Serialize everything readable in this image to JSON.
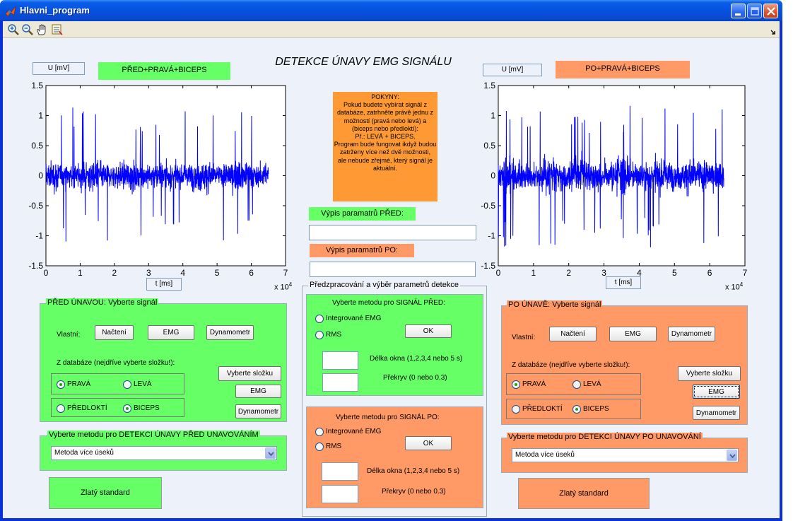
{
  "window": {
    "title": "Hlavni_program"
  },
  "toolbar": {
    "icons": [
      "zoom-in-icon",
      "zoom-out-icon",
      "pan-hand-icon",
      "data-cursor-icon"
    ]
  },
  "main_title": "DETEKCE ÚNAVY EMG SIGNÁLU",
  "left_plot": {
    "ylabel": "U [mV]",
    "xlabel": "t [ms]",
    "signal_label": "PŘED+PRAVÁ+BICEPS",
    "exponent": "x 10",
    "exponent_power": "4"
  },
  "right_plot": {
    "ylabel": "U [mV]",
    "xlabel": "t [ms]",
    "signal_label": "PO+PRAVÁ+BICEPS",
    "exponent": "x 10",
    "exponent_power": "4"
  },
  "chart_data": [
    {
      "type": "line",
      "series": [
        {
          "color": "#0000ff",
          "x_range": [
            0,
            65000
          ],
          "amplitude_typical": 0.35,
          "peak": 1.15
        }
      ],
      "xlabel": "t [ms]",
      "ylabel": "U [mV]",
      "xlim": [
        0,
        70000
      ],
      "ylim": [
        -1.5,
        1.5
      ],
      "xticks": [
        "0",
        "1",
        "2",
        "3",
        "4",
        "5",
        "6",
        "7"
      ],
      "yticks": [
        "1.5",
        "1",
        "0.5",
        "0",
        "-0.5",
        "-1",
        "-1.5"
      ],
      "x_multiplier": "x 10^4",
      "grid": false
    },
    {
      "type": "line",
      "series": [
        {
          "color": "#0000ff",
          "x_range": [
            0,
            64000
          ],
          "amplitude_typical": 0.4,
          "peak": 1.2
        }
      ],
      "xlabel": "t [ms]",
      "ylabel": "U [mV]",
      "xlim": [
        0,
        70000
      ],
      "ylim": [
        -1.5,
        1.5
      ],
      "xticks": [
        "0",
        "1",
        "2",
        "3",
        "4",
        "5",
        "6",
        "7"
      ],
      "yticks": [
        "1.5",
        "1",
        "0.5",
        "0",
        "-0.5",
        "-1",
        "-1.5"
      ],
      "x_multiplier": "x 10^4",
      "grid": false
    }
  ],
  "instructions": {
    "heading": "POKYNY:",
    "lines": [
      "Pokud budete vybírat signál z",
      "databáze, zatrhněte právě jednu z",
      "možností (pravá nebo levá) a",
      "(biceps nebo předloktí):",
      "Př.: LEVÁ + BICEPS.",
      "Program bude fungovat ikdyž budou",
      "zatrženy více než dvě možnosti,",
      "ale nebude zřejmé, který signál je",
      "aktuální."
    ]
  },
  "params": {
    "before_label": "Výpis paramatrů PŘED:",
    "before_value": "",
    "after_label": "Výpis paramatrů PO:",
    "after_value": ""
  },
  "before_panel": {
    "title": "PŘED ÚNAVOU: Vyberte signál",
    "own_label": "Vlastní:",
    "load_btn": "Načtení",
    "emg_btn": "EMG",
    "dyn_btn": "Dynamometr",
    "db_label": "Z databáze (nejdříve vyberte složku!):",
    "folder_btn": "Vyberte složku",
    "emg_btn2": "EMG",
    "dyn_btn2": "Dynamometr",
    "radio_right": "PRAVÁ",
    "radio_left": "LEVÁ",
    "radio_forearm": "PŘEDLOKTÍ",
    "radio_biceps": "BICEPS"
  },
  "after_panel": {
    "title": "PO ÚNAVĚ: Vyberte signál",
    "own_label": "Vlastní:",
    "load_btn": "Načtení",
    "emg_btn": "EMG",
    "dyn_btn": "Dynamometr",
    "db_label": "Z databáze (nejdříve vyberte složku!):",
    "folder_btn": "Vyberte složku",
    "emg_btn2": "EMG",
    "dyn_btn2": "Dynamometr",
    "radio_right": "PRAVÁ",
    "radio_left": "LEVÁ",
    "radio_forearm": "PŘEDLOKTÍ",
    "radio_biceps": "BICEPS"
  },
  "preproc": {
    "title": "Předzpracování a výběr parametrů detekce",
    "before": {
      "heading": "Vyberte metodu pro SIGNÁL PŘED:",
      "radio_iemg": "Integrované EMG",
      "radio_rms": "RMS",
      "ok": "OK",
      "window_label": "Délka okna (1,2,3,4 nebo 5 s)",
      "overlap_label": "Překryv (0 nebo 0.3)",
      "window_value": "",
      "overlap_value": ""
    },
    "after": {
      "heading": "Vyberte metodu pro SIGNÁL PO:",
      "radio_iemg": "Integrované EMG",
      "radio_rms": "RMS",
      "ok": "OK",
      "window_label": "Délka okna (1,2,3,4 nebo 5 s)",
      "overlap_label": "Překryv (0 nebo 0.3)",
      "window_value": "",
      "overlap_value": ""
    }
  },
  "detect_before": {
    "title": "Vyberte metodu pro DETEKCI ÚNAVY PŘED UNAVOVÁNÍM",
    "selected": "Metoda více úseků"
  },
  "detect_after": {
    "title": "Vyberte metodu pro DETEKCI ÚNAVY PO UNAVOVÁNÍ",
    "selected": "Metoda více úseků"
  },
  "gold_before": "Zlatý standard",
  "gold_after": "Zlatý standard",
  "colors": {
    "green": "#66ff66",
    "orange": "#ff9966",
    "signal": "#0000ff",
    "instructions": "#ff9933"
  }
}
